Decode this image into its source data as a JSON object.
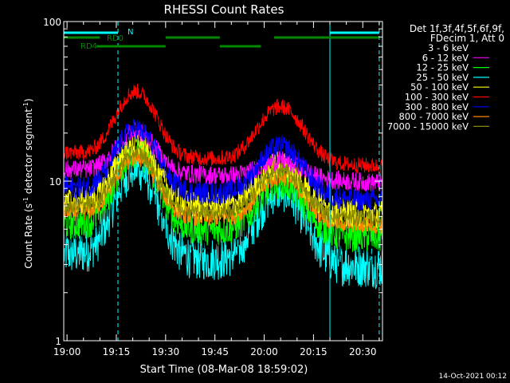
{
  "chart_data": {
    "type": "line",
    "title": "RHESSI Count Rates",
    "xlabel": "Start Time (08-Mar-08 18:59:02)",
    "ylabel_main": "Count Rate (s",
    "ylabel_sup1": "-1",
    "ylabel_mid": " detector segment",
    "ylabel_sup2": "-1",
    "ylabel_end": ")",
    "y_scale": "log",
    "ylim": [
      1,
      100
    ],
    "xlim_min": [
      0,
      97
    ],
    "x_ticks": [
      {
        "label": "19:00",
        "min": 1
      },
      {
        "label": "19:15",
        "min": 16
      },
      {
        "label": "19:30",
        "min": 31
      },
      {
        "label": "19:45",
        "min": 46
      },
      {
        "label": "20:00",
        "min": 61
      },
      {
        "label": "20:15",
        "min": 76
      },
      {
        "label": "20:30",
        "min": 91
      }
    ],
    "y_ticks": [
      {
        "label": "1",
        "value": 1
      },
      {
        "label": "10",
        "value": 10
      },
      {
        "label": "100",
        "value": 100
      }
    ],
    "legend": {
      "header1": "Det 1f,3f,4f,5f,6f,9f,",
      "header2": "FDecim 1, Att 0",
      "placement": "right"
    },
    "series": [
      {
        "name": "3 - 6 keV",
        "color": "#000000",
        "base": 5.0,
        "peak1": 16,
        "peak2": 12,
        "noise": 0.16
      },
      {
        "name": "6 - 12 keV",
        "color": "#ff00ff",
        "base": 11,
        "peak1": 20,
        "peak2": 14,
        "noise": 0.06
      },
      {
        "name": "12 - 25 keV",
        "color": "#00ff00",
        "base": 5.0,
        "peak1": 15,
        "peak2": 10,
        "noise": 0.1
      },
      {
        "name": "25 - 50 keV",
        "color": "#00ffff",
        "base": 3.3,
        "peak1": 12,
        "peak2": 9,
        "noise": 0.14
      },
      {
        "name": "50 - 100 keV",
        "color": "#ffff00",
        "base": 7.0,
        "peak1": 17,
        "peak2": 13,
        "noise": 0.09
      },
      {
        "name": "100 - 300 keV",
        "color": "#ff0000",
        "base": 14,
        "peak1": 36,
        "peak2": 30,
        "noise": 0.05
      },
      {
        "name": "300 - 800 keV",
        "color": "#0000ff",
        "base": 8.5,
        "peak1": 21,
        "peak2": 17,
        "noise": 0.07
      },
      {
        "name": "800 - 7000 keV",
        "color": "#ff8800",
        "base": 6.0,
        "peak1": 14,
        "peak2": 11,
        "noise": 0.06
      },
      {
        "name": "7000 - 15000 keV",
        "color": "#888800",
        "base": 6.5,
        "peak1": 15,
        "peak2": 12,
        "noise": 0.05
      }
    ],
    "attenuator_bars": [
      {
        "label": "N",
        "color": "#00ffff",
        "level": 2,
        "segments": [
          [
            0,
            16.5
          ],
          [
            81,
            96
          ]
        ]
      },
      {
        "label": "RD0",
        "color": "#008800",
        "level": 1,
        "segments": [
          [
            0,
            11
          ],
          [
            31,
            47.5
          ],
          [
            64,
            96
          ]
        ]
      },
      {
        "label": "RD4",
        "color": "#008800",
        "level": 0,
        "segments": [
          [
            10,
            31
          ],
          [
            47.5,
            60
          ]
        ]
      }
    ],
    "vlines": [
      {
        "min": 0,
        "style": "solid"
      },
      {
        "min": 16.5,
        "style": "dashed"
      },
      {
        "min": 81,
        "style": "solid"
      },
      {
        "min": 96,
        "style": "dashed"
      }
    ]
  },
  "footer": {
    "timestamp": "14-Oct-2021 00:12"
  }
}
